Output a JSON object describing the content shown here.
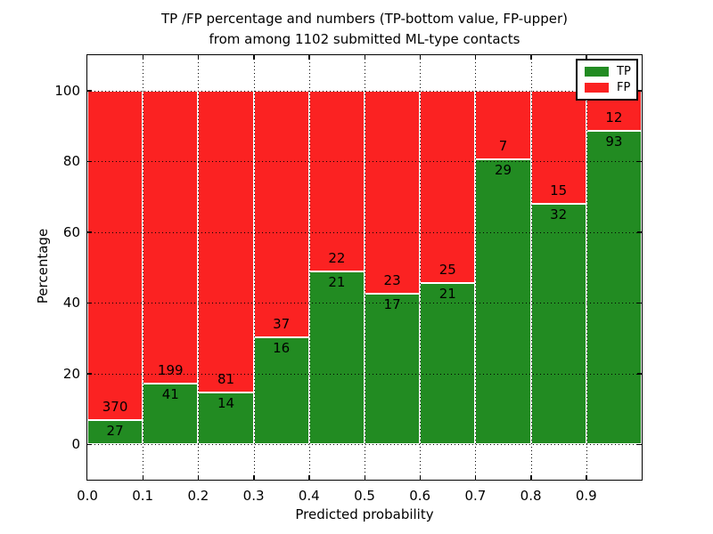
{
  "chart_data": {
    "type": "bar",
    "stacked": true,
    "normalized_to": "percentage of bin (each bar totals 100%)",
    "title_line1": "TP /FP percentage and numbers (TP-bottom value, FP-upper)",
    "title_line2": "from among 1102 submitted ML-type contacts",
    "xlabel": "Predicted probability",
    "ylabel": "Percentage",
    "xlim": [
      0.0,
      1.0
    ],
    "ylim": [
      -10,
      110
    ],
    "x_tick_values": [
      0.0,
      0.1,
      0.2,
      0.3,
      0.4,
      0.5,
      0.6,
      0.7,
      0.8,
      0.9
    ],
    "x_tick_labels": [
      "0.0",
      "0.1",
      "0.2",
      "0.3",
      "0.4",
      "0.5",
      "0.6",
      "0.7",
      "0.8",
      "0.9"
    ],
    "y_tick_values": [
      0,
      20,
      40,
      60,
      80,
      100
    ],
    "y_tick_labels": [
      "0",
      "20",
      "40",
      "60",
      "80",
      "100"
    ],
    "bin_width": 0.1,
    "grid": "dotted black, on, drawn over bars",
    "bar_edge_color": "#ffffff",
    "series": [
      {
        "name": "TP",
        "color": "#228b22",
        "counts": [
          27,
          41,
          14,
          16,
          21,
          17,
          21,
          29,
          32,
          93
        ]
      },
      {
        "name": "FP",
        "color": "#fb2222",
        "counts": [
          370,
          199,
          81,
          37,
          22,
          23,
          25,
          7,
          15,
          12
        ]
      }
    ],
    "tp_percent_of_bin": [
      6.8,
      17.1,
      14.7,
      30.2,
      48.8,
      42.5,
      45.7,
      80.6,
      68.1,
      88.6
    ],
    "total_contacts": 1102,
    "legend": {
      "position": "upper right",
      "entries": [
        {
          "label": "TP",
          "color": "#228b22"
        },
        {
          "label": "FP",
          "color": "#fb2222"
        }
      ]
    }
  }
}
